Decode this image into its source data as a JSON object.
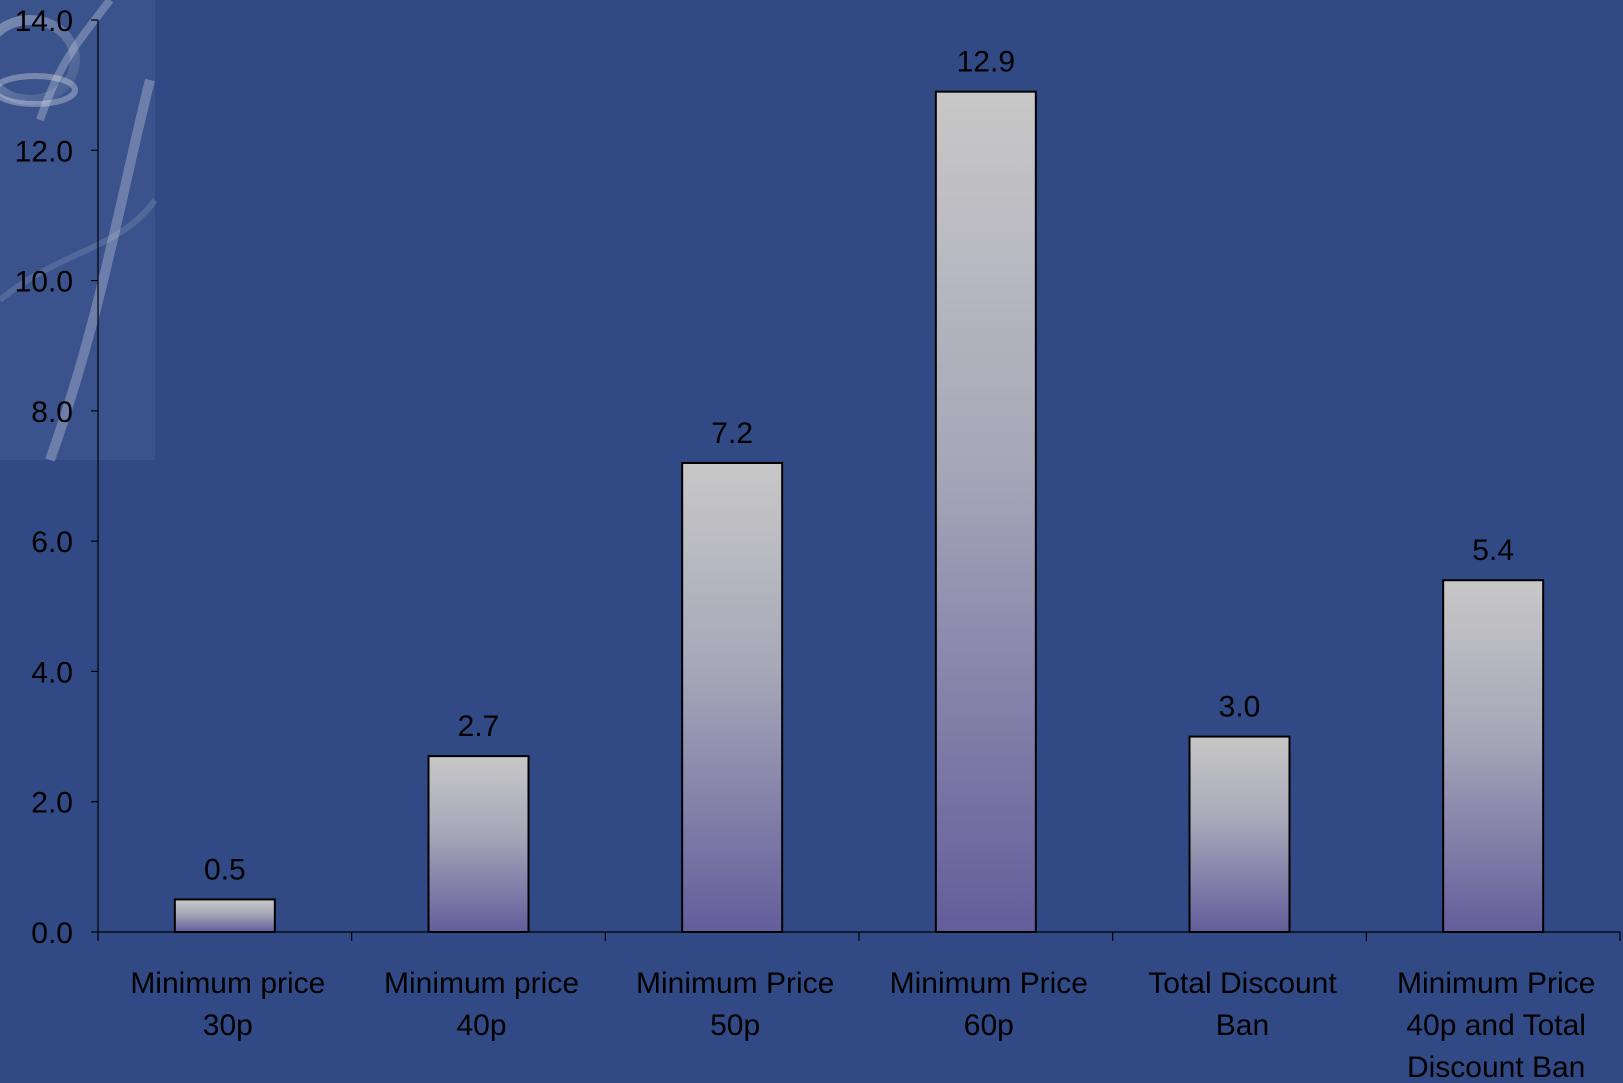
{
  "chart_data": {
    "type": "bar",
    "title": "",
    "xlabel": "",
    "ylabel": "",
    "categories": [
      [
        "Minimum price",
        "30p"
      ],
      [
        "Minimum price",
        "40p"
      ],
      [
        "Minimum Price",
        "50p"
      ],
      [
        "Minimum Price",
        "60p"
      ],
      [
        "Total Discount",
        "Ban"
      ],
      [
        "Minimum Price",
        "40p and Total",
        "Discount Ban"
      ]
    ],
    "values": [
      0.5,
      2.7,
      7.2,
      12.9,
      3.0,
      5.4
    ],
    "value_labels": [
      "0.5",
      "2.7",
      "7.2",
      "12.9",
      "3.0",
      "5.4"
    ],
    "ylim": [
      0,
      14
    ],
    "yticks": [
      "0.0",
      "2.0",
      "4.0",
      "6.0",
      "8.0",
      "10.0",
      "12.0",
      "14.0"
    ],
    "grid": false,
    "legend": "none",
    "colors": {
      "background": "#314a86",
      "bar_top": "#c8c8c8",
      "bar_bottom": "#635d9b",
      "bar_outline": "#000000",
      "axis": "#000000",
      "text": "#000000"
    }
  }
}
